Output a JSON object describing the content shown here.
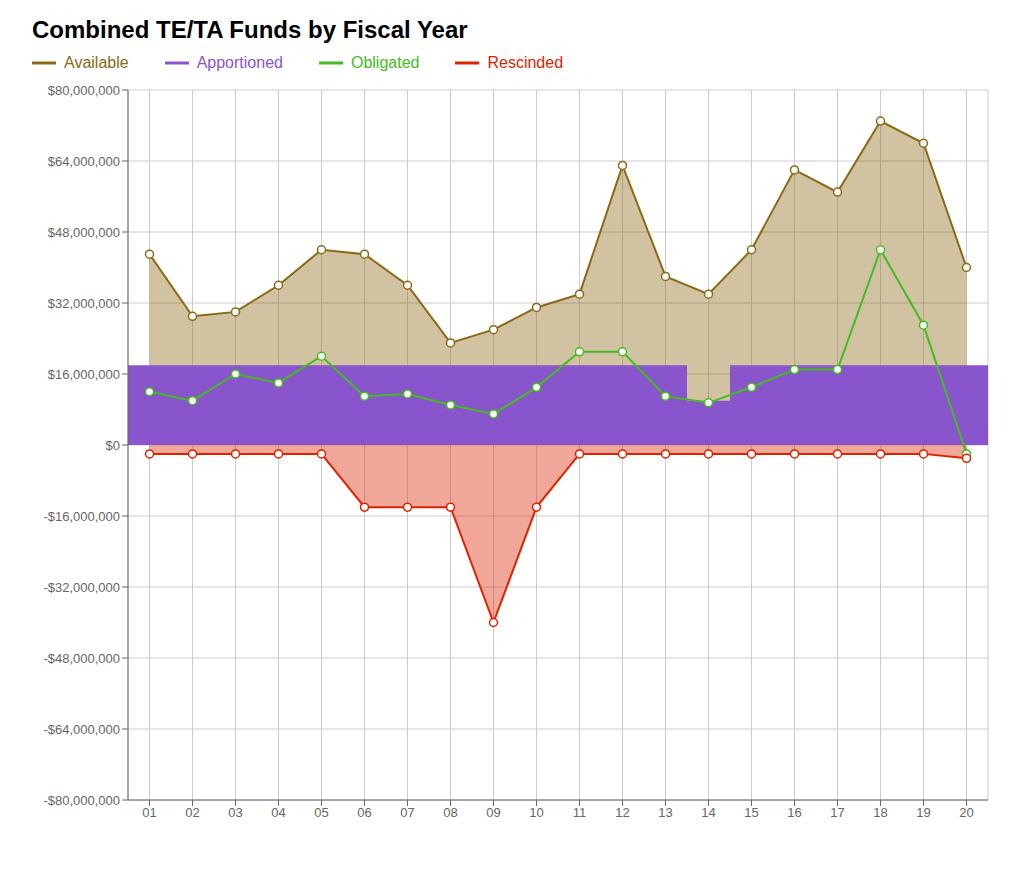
{
  "chart_data": {
    "type": "composed",
    "title": "Combined TE/TA Funds by Fiscal Year",
    "categories": [
      "01",
      "02",
      "03",
      "04",
      "05",
      "06",
      "07",
      "08",
      "09",
      "10",
      "11",
      "12",
      "13",
      "14",
      "15",
      "16",
      "17",
      "18",
      "19",
      "20"
    ],
    "series": [
      {
        "name": "Available",
        "type": "area",
        "color": "#8B6914",
        "marker": "circle",
        "values": [
          43000000,
          29000000,
          30000000,
          36000000,
          44000000,
          43000000,
          36000000,
          23000000,
          26000000,
          31000000,
          34000000,
          63000000,
          38000000,
          34000000,
          44000000,
          62000000,
          57000000,
          73000000,
          68000000,
          40000000
        ]
      },
      {
        "name": "Apportioned",
        "type": "bar",
        "color": "#8855CC",
        "values": [
          18000000,
          18000000,
          18000000,
          18000000,
          18000000,
          18000000,
          18000000,
          18000000,
          18000000,
          18000000,
          18000000,
          18000000,
          18000000,
          10000000,
          18000000,
          18000000,
          18000000,
          18000000,
          18000000,
          18000000
        ]
      },
      {
        "name": "Obligated",
        "type": "line",
        "color": "#44BB22",
        "marker": "circle",
        "values": [
          12000000,
          10000000,
          16000000,
          14000000,
          20000000,
          11000000,
          11500000,
          9000000,
          7000000,
          13000000,
          21000000,
          21000000,
          11000000,
          9500000,
          13000000,
          17000000,
          17000000,
          44000000,
          27000000,
          -2000000
        ]
      },
      {
        "name": "Rescinded",
        "type": "area",
        "color": "#DD2200",
        "marker": "circle",
        "values": [
          -2000000,
          -2000000,
          -2000000,
          -2000000,
          -2000000,
          -14000000,
          -14000000,
          -14000000,
          -40000000,
          -14000000,
          -2000000,
          -2000000,
          -2000000,
          -2000000,
          -2000000,
          -2000000,
          -2000000,
          -2000000,
          -2000000,
          -3000000
        ]
      }
    ],
    "ylim": [
      -80000000,
      80000000
    ],
    "yticks": [
      {
        "value": -80000000,
        "label": "-$80,000,000"
      },
      {
        "value": -64000000,
        "label": "-$64,000,000"
      },
      {
        "value": -48000000,
        "label": "-$48,000,000"
      },
      {
        "value": -32000000,
        "label": "-$32,000,000"
      },
      {
        "value": -16000000,
        "label": "-$16,000,000"
      },
      {
        "value": 0,
        "label": "$0"
      },
      {
        "value": 16000000,
        "label": "$16,000,000"
      },
      {
        "value": 32000000,
        "label": "$32,000,000"
      },
      {
        "value": 48000000,
        "label": "$48,000,000"
      },
      {
        "value": 64000000,
        "label": "$64,000,000"
      },
      {
        "value": 80000000,
        "label": "$80,000,000"
      }
    ],
    "grid": true
  }
}
